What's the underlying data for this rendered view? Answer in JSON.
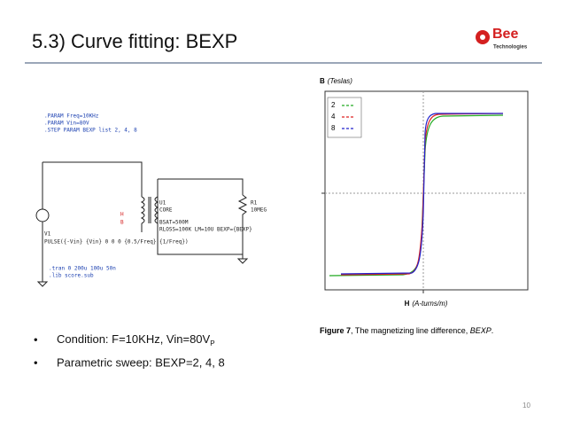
{
  "header": {
    "title": "5.3) Curve fitting: BEXP",
    "logo": {
      "name": "Bee",
      "tagline": "Technologies"
    }
  },
  "schematic": {
    "directives": [
      ".PARAM Freq=10KHz",
      ".PARAM Vin=80V",
      ".STEP PARAM BEXP list 2, 4, 8"
    ],
    "u1": {
      "name": "U1",
      "model": "CORE",
      "params": [
        "BSAT=500M",
        "RLOSS=100K LM=10U BEXP={BEXP}"
      ]
    },
    "r1": {
      "name": "R1",
      "value": "10MEG"
    },
    "pins": [
      "H",
      "B"
    ],
    "v1": {
      "name": "V1",
      "source": "PULSE({-Vin} {Vin} 0 0 0 {0.5/Freq} {1/Freq})"
    },
    "analysis": [
      ".tran 0 200u 100u 50n",
      ".lib score.sub"
    ]
  },
  "bullets": [
    {
      "text": "Condition: F=10KHz, Vin=80V",
      "subscript": "P"
    },
    {
      "text": "Parametric sweep: BEXP=2, 4, 8"
    }
  ],
  "figure": {
    "y_label": {
      "symbol": "B",
      "unit": "(Teslas)"
    },
    "x_label": {
      "symbol": "H",
      "unit": "(A-turns/m)"
    },
    "legend": [
      {
        "name": "2",
        "color": "#22aa22"
      },
      {
        "name": "4",
        "color": "#dd2222"
      },
      {
        "name": "8",
        "color": "#2222cc"
      }
    ],
    "caption": {
      "label": "Figure 7",
      "text": ", The magnetizing line difference, ",
      "emphasis": "BEXP",
      "end": "."
    }
  },
  "page_number": "10"
}
